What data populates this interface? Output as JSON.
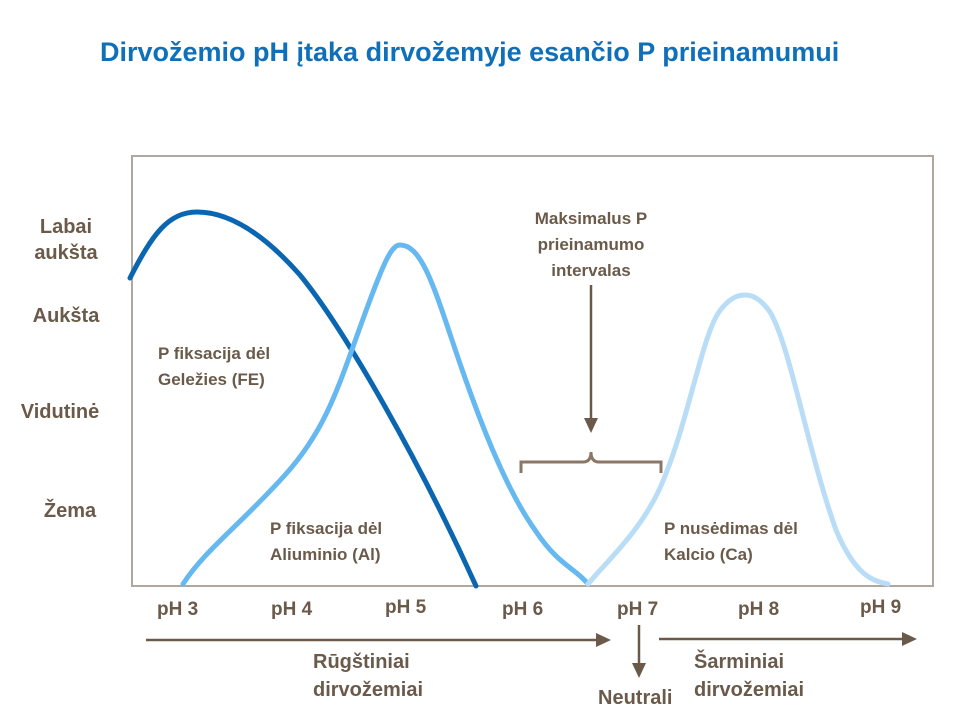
{
  "title": "Dirvožemio pH įtaka dirvožemyje esančio P prieinamumui",
  "y_levels": [
    "Labai aukšta",
    "Aukšta",
    "Vidutinė",
    "Žema"
  ],
  "x_ticks": [
    "pH 3",
    "pH 4",
    "pH 5",
    "pH 6",
    "pH 7",
    "pH 8",
    "pH 9"
  ],
  "annotations": {
    "fe": "P fiksacija dėl Geležies (FE)",
    "al": "P fiksacija dėl Aliuminio (Al)",
    "ca": "P nusėdimas dėl Kalcio (Ca)",
    "max": "Maksimalus P prieinamumo intervalas"
  },
  "bottom": {
    "acidic": "Rūgštiniai dirvožemiai",
    "neutral": "Neutrali",
    "alkaline": "Šarminiai dirvožemiai"
  },
  "colors": {
    "title": "#0f6fb8",
    "text": "#6b5a4a",
    "frame": "#b0a89e",
    "curve_fe": "#0a66b0",
    "curve_al": "#66b8f0",
    "curve_ca": "#b9ddf6",
    "arrows": "#6b5a4a"
  }
}
